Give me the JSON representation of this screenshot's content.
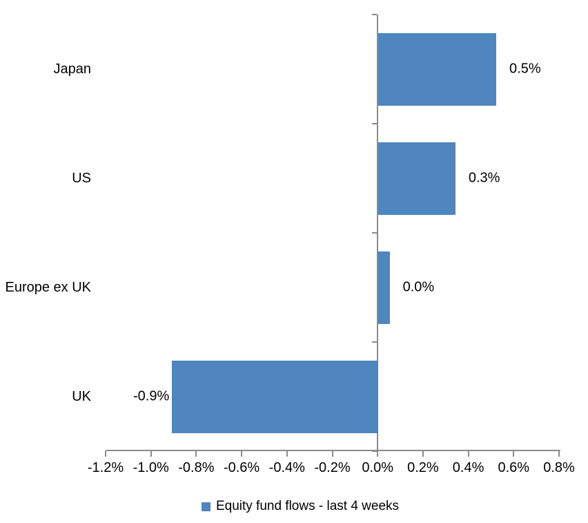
{
  "chart_data": {
    "type": "bar",
    "orientation": "horizontal",
    "title": "",
    "categories": [
      "Japan",
      "US",
      "Europe ex UK",
      "UK"
    ],
    "values": [
      0.5,
      0.3,
      0.0,
      -0.9
    ],
    "value_labels": [
      "0.5%",
      "0.3%",
      "0.0%",
      "-0.9%"
    ],
    "render_values": [
      0.52,
      0.34,
      0.05,
      -0.91
    ],
    "x_axis": {
      "min": -1.2,
      "max": 0.8,
      "step": 0.2,
      "tick_labels": [
        "-1.2%",
        "-1.0%",
        "-0.8%",
        "-0.6%",
        "-0.4%",
        "-0.2%",
        "0.0%",
        "0.2%",
        "0.4%",
        "0.6%",
        "0.8%"
      ]
    },
    "legend": {
      "label": "Equity fund flows - last 4 weeks",
      "position": "bottom"
    },
    "bar_color": "#4e86bd",
    "axis_color": "#8a8a8a",
    "grid": false
  }
}
